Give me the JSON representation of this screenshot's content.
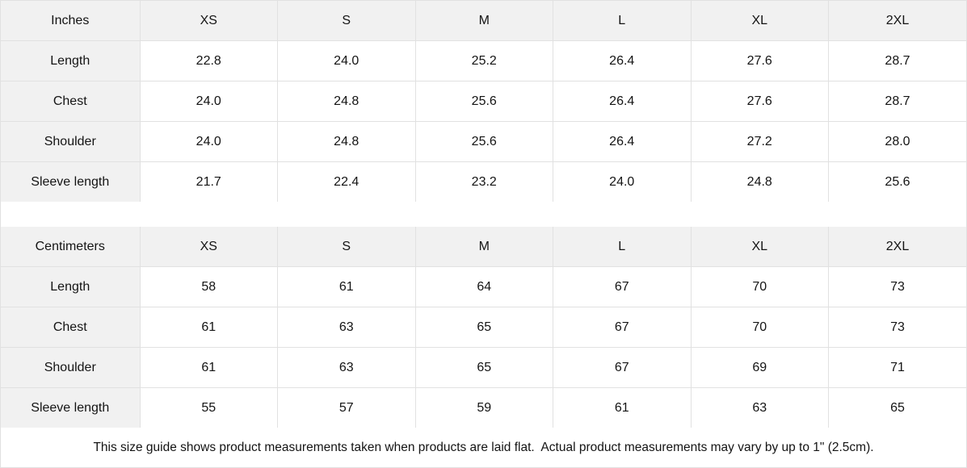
{
  "theme": {
    "header_bg": "#f1f1f1",
    "border": "#e1e1e1",
    "text": "#141414"
  },
  "chart_data": {
    "type": "table",
    "columns": [
      "XS",
      "S",
      "M",
      "L",
      "XL",
      "2XL"
    ],
    "tables": [
      {
        "unit": "Inches",
        "rows": [
          {
            "label": "Length",
            "values": [
              "22.8",
              "24.0",
              "25.2",
              "26.4",
              "27.6",
              "28.7"
            ]
          },
          {
            "label": "Chest",
            "values": [
              "24.0",
              "24.8",
              "25.6",
              "26.4",
              "27.6",
              "28.7"
            ]
          },
          {
            "label": "Shoulder",
            "values": [
              "24.0",
              "24.8",
              "25.6",
              "26.4",
              "27.2",
              "28.0"
            ]
          },
          {
            "label": "Sleeve length",
            "values": [
              "21.7",
              "22.4",
              "23.2",
              "24.0",
              "24.8",
              "25.6"
            ]
          }
        ]
      },
      {
        "unit": "Centimeters",
        "rows": [
          {
            "label": "Length",
            "values": [
              "58",
              "61",
              "64",
              "67",
              "70",
              "73"
            ]
          },
          {
            "label": "Chest",
            "values": [
              "61",
              "63",
              "65",
              "67",
              "70",
              "73"
            ]
          },
          {
            "label": "Shoulder",
            "values": [
              "61",
              "63",
              "65",
              "67",
              "69",
              "71"
            ]
          },
          {
            "label": "Sleeve length",
            "values": [
              "55",
              "57",
              "59",
              "61",
              "63",
              "65"
            ]
          }
        ]
      }
    ],
    "footnote": "This size guide shows product measurements taken when products are laid flat.  Actual product measurements may vary by up to 1\" (2.5cm)."
  }
}
